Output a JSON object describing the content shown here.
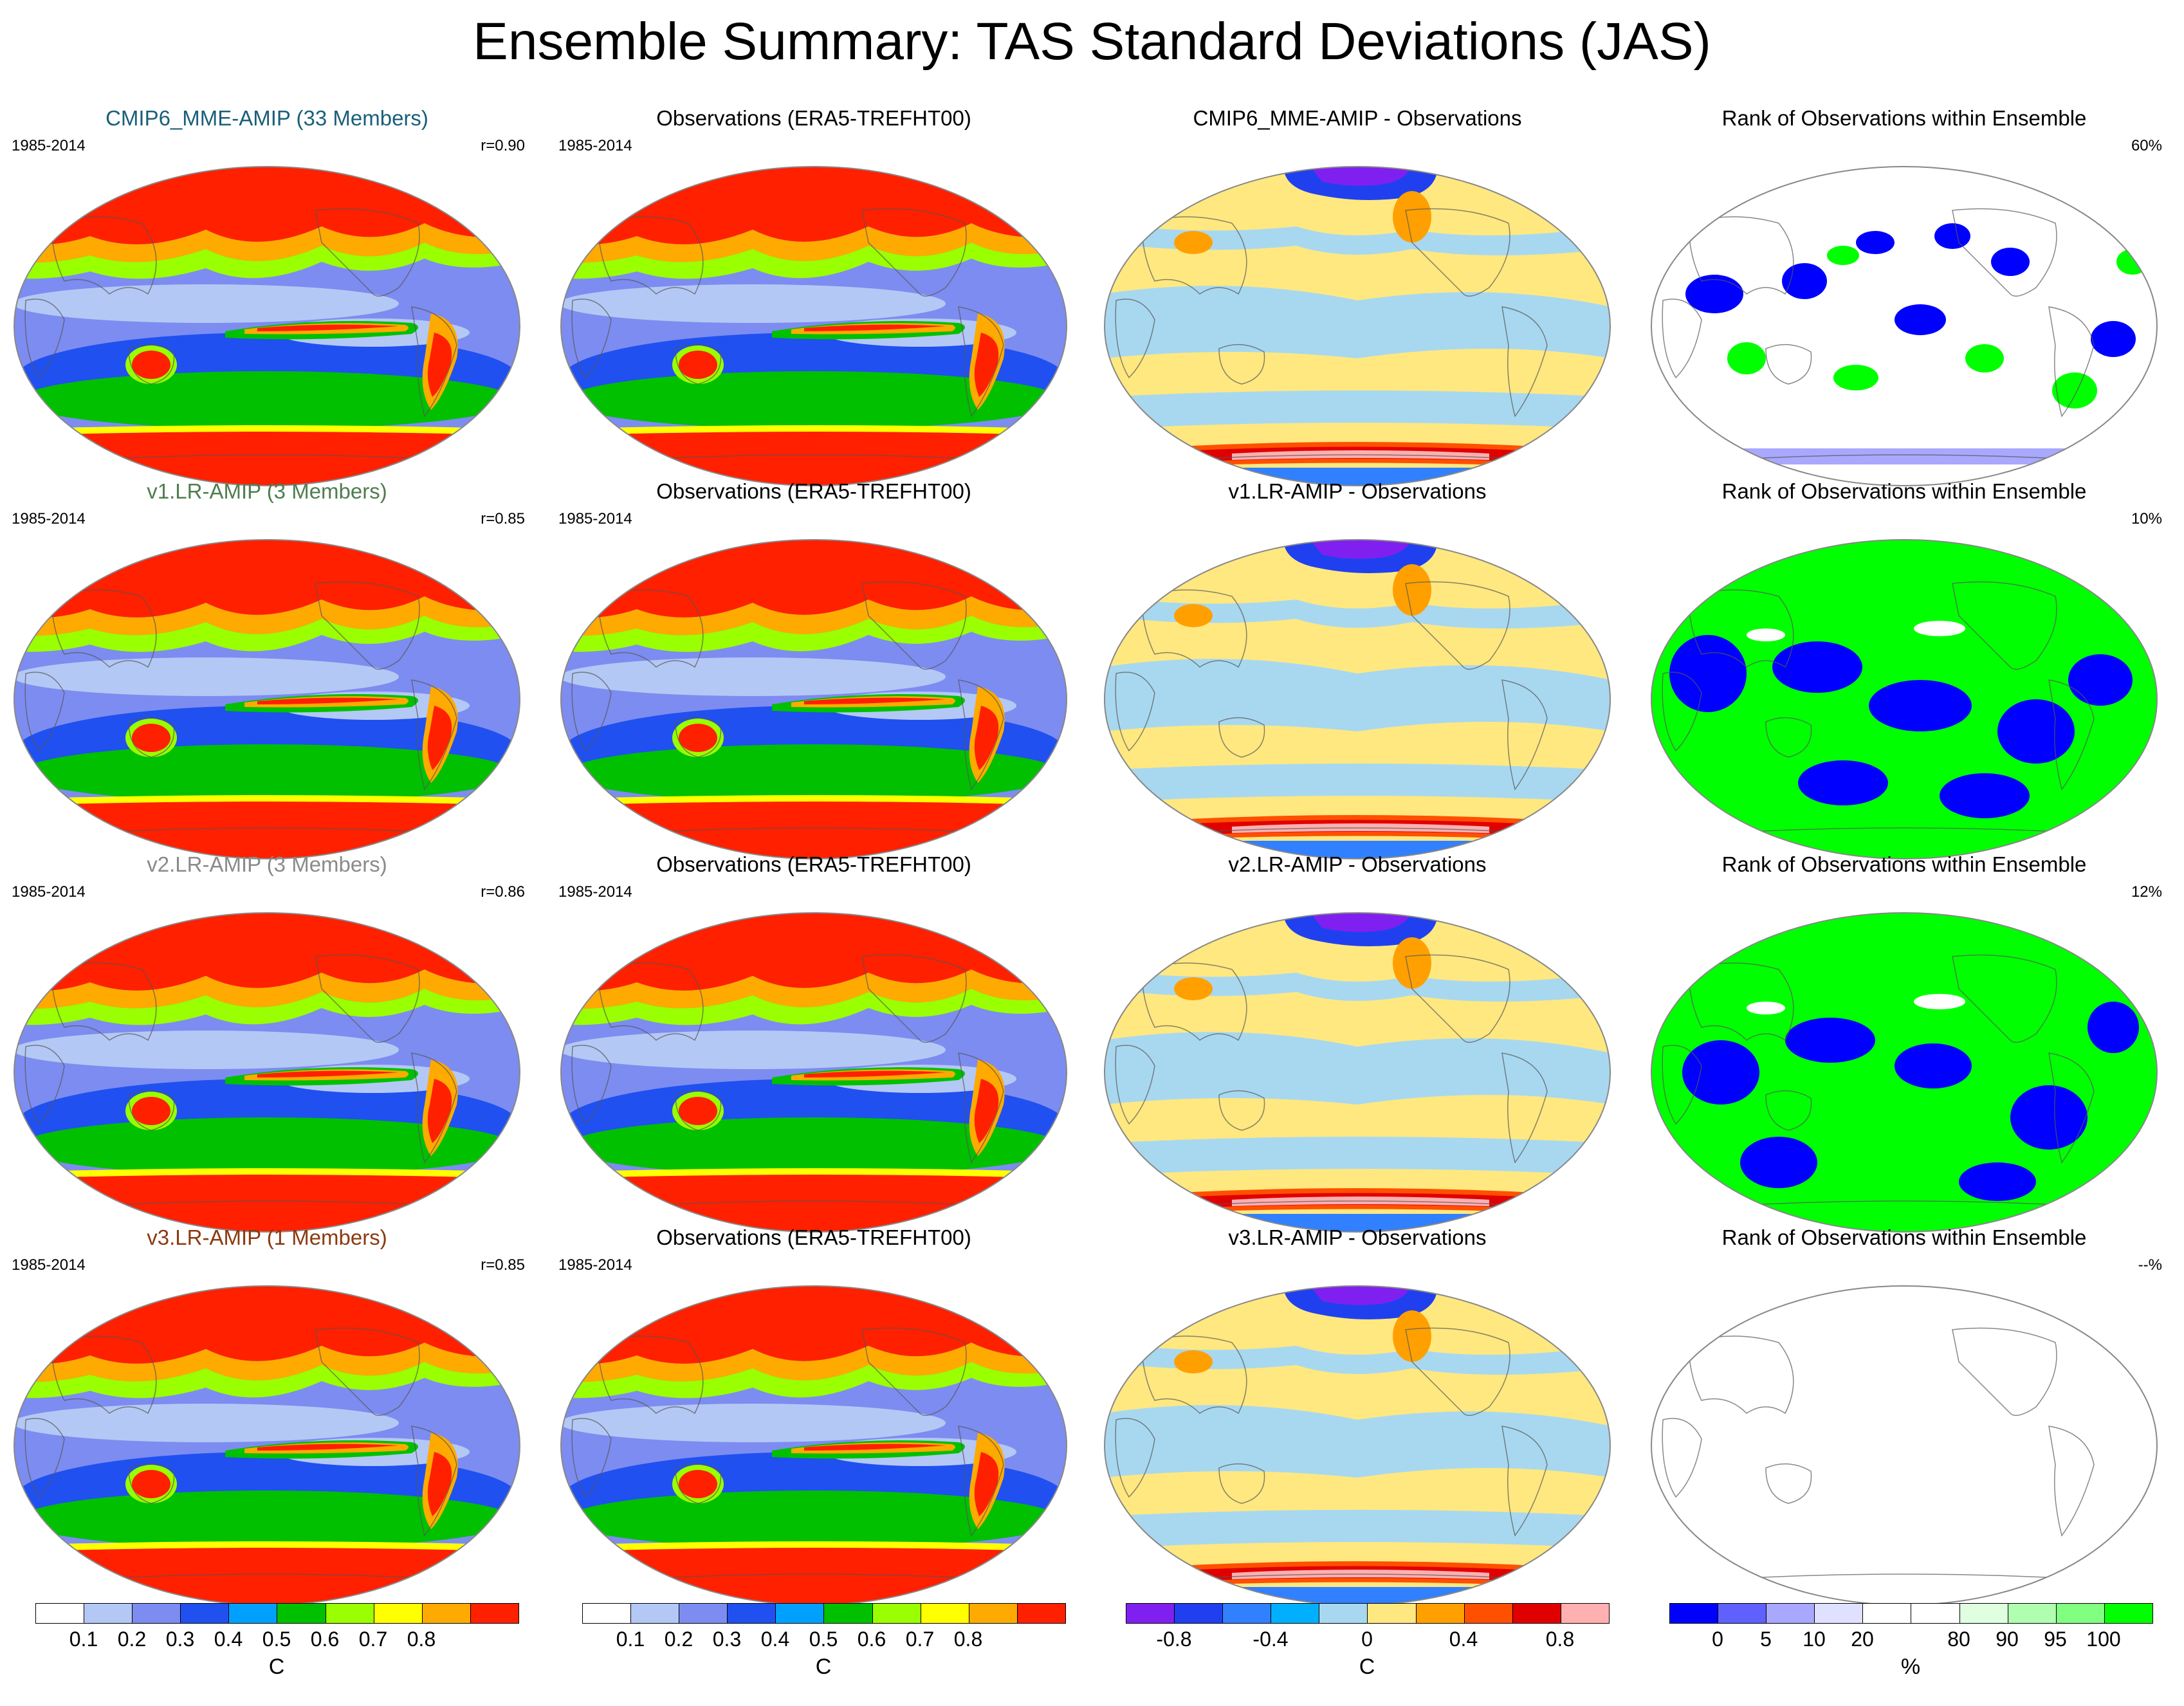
{
  "title": "Ensemble Summary: TAS Standard Deviations (JAS)",
  "period": "1985-2014",
  "rows": [
    {
      "model": {
        "title": "CMIP6_MME-AMIP (33 Members)",
        "title_color": "#1a5f7a",
        "r": "r=0.90"
      },
      "obs": {
        "title": "Observations (ERA5-TREFHT00)"
      },
      "diff": {
        "title": "CMIP6_MME-AMIP - Observations"
      },
      "rank": {
        "title": "Rank of Observations within Ensemble",
        "pct": "60%"
      }
    },
    {
      "model": {
        "title": "v1.LR-AMIP (3 Members)",
        "title_color": "#4f7d4f",
        "r": "r=0.85"
      },
      "obs": {
        "title": "Observations (ERA5-TREFHT00)"
      },
      "diff": {
        "title": "v1.LR-AMIP - Observations"
      },
      "rank": {
        "title": "Rank of Observations within Ensemble",
        "pct": "10%"
      }
    },
    {
      "model": {
        "title": "v2.LR-AMIP (3 Members)",
        "title_color": "#8a8a8a",
        "r": "r=0.86"
      },
      "obs": {
        "title": "Observations (ERA5-TREFHT00)"
      },
      "diff": {
        "title": "v2.LR-AMIP - Observations"
      },
      "rank": {
        "title": "Rank of Observations within Ensemble",
        "pct": "12%"
      }
    },
    {
      "model": {
        "title": "v3.LR-AMIP (1 Members)",
        "title_color": "#8b3a10",
        "r": "r=0.85"
      },
      "obs": {
        "title": "Observations (ERA5-TREFHT00)"
      },
      "diff": {
        "title": "v3.LR-AMIP - Observations"
      },
      "rank": {
        "title": "Rank of Observations within Ensemble",
        "pct": "--%"
      }
    }
  ],
  "colorbars": {
    "sd": {
      "colors": [
        "#ffffff",
        "#b4c8f5",
        "#7d8cf0",
        "#2050f0",
        "#00a0ff",
        "#00c000",
        "#9aff00",
        "#ffff00",
        "#ffaa00",
        "#ff2000"
      ],
      "ticks": [
        "0.1",
        "0.2",
        "0.3",
        "0.4",
        "0.5",
        "0.6",
        "0.7",
        "0.8"
      ],
      "unit": "C"
    },
    "diff": {
      "colors": [
        "#8020f0",
        "#2040f0",
        "#3080ff",
        "#00b0ff",
        "#a8d8f0",
        "#ffe880",
        "#ffa000",
        "#ff5000",
        "#e00000",
        "#ffb0b0"
      ],
      "ticks": [
        "-0.8",
        "-0.4",
        "0",
        "0.4",
        "0.8"
      ],
      "unit": "C"
    },
    "rank": {
      "colors": [
        "#0000ff",
        "#6060ff",
        "#a8a8ff",
        "#e0e0ff",
        "#ffffff",
        "#ffffff",
        "#e0ffe0",
        "#b0ffb0",
        "#80ff80",
        "#00ff00"
      ],
      "ticks": [
        "0",
        "5",
        "10",
        "20",
        "80",
        "90",
        "95",
        "100"
      ],
      "unit": "%"
    }
  }
}
